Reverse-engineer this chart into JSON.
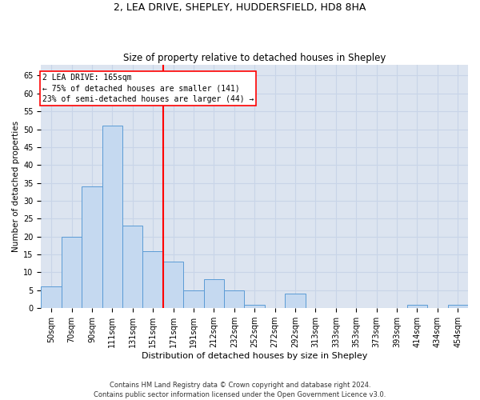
{
  "title_line1": "2, LEA DRIVE, SHEPLEY, HUDDERSFIELD, HD8 8HA",
  "title_line2": "Size of property relative to detached houses in Shepley",
  "xlabel": "Distribution of detached houses by size in Shepley",
  "ylabel": "Number of detached properties",
  "footnote": "Contains HM Land Registry data © Crown copyright and database right 2024.\nContains public sector information licensed under the Open Government Licence v3.0.",
  "bin_labels": [
    "50sqm",
    "70sqm",
    "90sqm",
    "111sqm",
    "131sqm",
    "151sqm",
    "171sqm",
    "191sqm",
    "212sqm",
    "232sqm",
    "252sqm",
    "272sqm",
    "292sqm",
    "313sqm",
    "333sqm",
    "353sqm",
    "373sqm",
    "393sqm",
    "414sqm",
    "434sqm",
    "454sqm"
  ],
  "bar_values": [
    6,
    20,
    34,
    51,
    23,
    16,
    13,
    5,
    8,
    5,
    1,
    0,
    4,
    0,
    0,
    0,
    0,
    0,
    1,
    0,
    1
  ],
  "bar_color": "#c5d9f0",
  "bar_edge_color": "#5b9bd5",
  "grid_color": "#c8d4e8",
  "background_color": "#dce4f0",
  "vline_x": 5.5,
  "vline_color": "red",
  "annotation_text": "2 LEA DRIVE: 165sqm\n← 75% of detached houses are smaller (141)\n23% of semi-detached houses are larger (44) →",
  "ylim": [
    0,
    68
  ],
  "yticks": [
    0,
    5,
    10,
    15,
    20,
    25,
    30,
    35,
    40,
    45,
    50,
    55,
    60,
    65
  ],
  "title1_fontsize": 9,
  "title2_fontsize": 8.5,
  "xlabel_fontsize": 8,
  "ylabel_fontsize": 7.5,
  "tick_fontsize": 7,
  "annot_fontsize": 7,
  "footnote_fontsize": 6
}
